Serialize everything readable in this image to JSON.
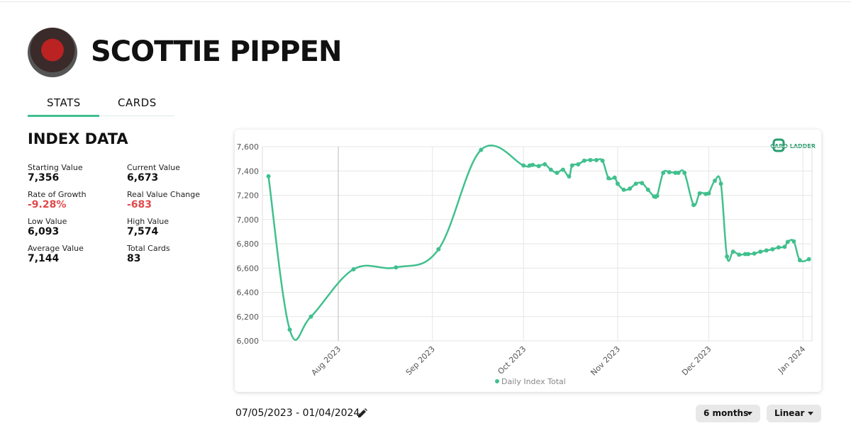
{
  "header": {
    "title": "SCOTTIE PIPPEN"
  },
  "tabs": [
    "STATS",
    "CARDS"
  ],
  "index_data": {
    "title": "INDEX DATA",
    "items": [
      {
        "label": "Starting Value",
        "value": "7,356"
      },
      {
        "label": "Current Value",
        "value": "6,673"
      },
      {
        "label": "Rate of Growth",
        "value": "-9.28%"
      },
      {
        "label": "Real Value Change",
        "value": "-683"
      },
      {
        "label": "Low Value",
        "value": "6,093"
      },
      {
        "label": "High Value",
        "value": "7,574"
      },
      {
        "label": "Average Value",
        "value": "7,144"
      },
      {
        "label": "Total Cards",
        "value": "83"
      }
    ]
  },
  "logo": "CARD LADDER",
  "date_range": "07/05/2023 - 01/04/2024",
  "controls": [
    "6 months",
    "Linear"
  ],
  "chart_data": {
    "type": "line",
    "x": [
      "2023-07-09",
      "2023-07-16",
      "2023-07-23",
      "2023-08-06",
      "2023-08-20",
      "2023-09-03",
      "2023-09-17",
      "2023-10-01",
      "2023-10-03",
      "2023-10-04",
      "2023-10-06",
      "2023-10-08",
      "2023-10-10",
      "2023-10-12",
      "2023-10-14",
      "2023-10-16",
      "2023-10-17",
      "2023-10-19",
      "2023-10-21",
      "2023-10-23",
      "2023-10-25",
      "2023-10-27",
      "2023-10-29",
      "2023-10-31",
      "2023-11-01",
      "2023-11-03",
      "2023-11-05",
      "2023-11-07",
      "2023-11-09",
      "2023-11-11",
      "2023-11-13",
      "2023-11-14",
      "2023-11-16",
      "2023-11-18",
      "2023-11-20",
      "2023-11-21",
      "2023-11-23",
      "2023-11-26",
      "2023-11-28",
      "2023-11-30",
      "2023-12-01",
      "2023-12-03",
      "2023-12-05",
      "2023-12-07",
      "2023-12-09",
      "2023-12-11",
      "2023-12-13",
      "2023-12-14",
      "2023-12-16",
      "2023-12-18",
      "2023-12-20",
      "2023-12-22",
      "2023-12-24",
      "2023-12-26",
      "2023-12-27",
      "2023-12-29",
      "2023-12-31",
      "2024-01-03"
    ],
    "series": [
      {
        "name": "Daily Index Total",
        "color": "#41c08e",
        "values": [
          7356,
          6093,
          6200,
          6590,
          6605,
          6755,
          7574,
          7445,
          7445,
          7450,
          7440,
          7455,
          7410,
          7385,
          7410,
          7355,
          7445,
          7455,
          7485,
          7490,
          7490,
          7485,
          7340,
          7345,
          7295,
          7245,
          7255,
          7295,
          7300,
          7245,
          7190,
          7195,
          7385,
          7390,
          7385,
          7385,
          7385,
          7120,
          7215,
          7210,
          7215,
          7320,
          7295,
          6695,
          6735,
          6710,
          6715,
          6715,
          6720,
          6735,
          6745,
          6755,
          6770,
          6775,
          6815,
          6820,
          6665,
          6673
        ]
      }
    ],
    "xlim": [
      "2023-07-07",
      "2024-01-04"
    ],
    "xticks": [
      {
        "value": "2023-08-01",
        "label": "Aug 2023"
      },
      {
        "value": "2023-09-01",
        "label": "Sep 2023"
      },
      {
        "value": "2023-10-01",
        "label": "Oct 2023"
      },
      {
        "value": "2023-11-01",
        "label": "Nov 2023"
      },
      {
        "value": "2023-12-01",
        "label": "Dec 2023"
      },
      {
        "value": "2024-01-01",
        "label": "Jan 2024"
      }
    ],
    "ylim": [
      6000,
      7600
    ],
    "yticks": [
      {
        "value": 6000,
        "label": "6,000"
      },
      {
        "value": 6200,
        "label": "6,200"
      },
      {
        "value": 6400,
        "label": "6,400"
      },
      {
        "value": 6600,
        "label": "6,600"
      },
      {
        "value": 6800,
        "label": "6,800"
      },
      {
        "value": 7000,
        "label": "7,000"
      },
      {
        "value": 7200,
        "label": "7,200"
      },
      {
        "value": 7400,
        "label": "7,400"
      },
      {
        "value": 7600,
        "label": "7,600"
      }
    ],
    "grid": true
  }
}
